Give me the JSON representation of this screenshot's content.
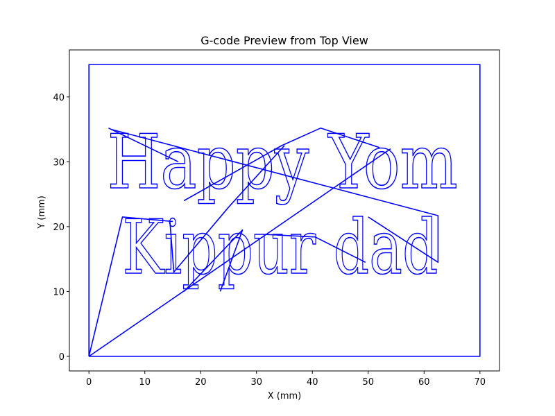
{
  "chart_data": {
    "type": "line",
    "title": "G-code Preview from Top View",
    "xlabel": "X (mm)",
    "ylabel": "Y (mm)",
    "xlim": [
      -3.5,
      73.5
    ],
    "ylim": [
      -2.25,
      47.25
    ],
    "xticks": [
      0,
      10,
      20,
      30,
      40,
      50,
      60,
      70
    ],
    "yticks": [
      0,
      10,
      20,
      30,
      40
    ],
    "grid": false,
    "line_color": "#0000ff",
    "series": [
      {
        "values": [
          {
            "x": 0,
            "y": 0
          },
          {
            "x": 0,
            "y": 45
          },
          {
            "x": 70,
            "y": 45
          },
          {
            "x": 70,
            "y": 0
          },
          {
            "x": 0,
            "y": 0
          }
        ]
      },
      {
        "values": [
          {
            "x": 0,
            "y": 0
          },
          {
            "x": 6,
            "y": 21.5
          },
          {
            "x": 15,
            "y": 20.8
          }
        ]
      },
      {
        "values": [
          {
            "x": 0,
            "y": 0
          },
          {
            "x": 54,
            "y": 32
          }
        ]
      },
      {
        "values": [
          {
            "x": 3.5,
            "y": 35.2
          },
          {
            "x": 16,
            "y": 30
          }
        ]
      },
      {
        "values": [
          {
            "x": 4,
            "y": 35
          },
          {
            "x": 62.5,
            "y": 21.7
          },
          {
            "x": 62.5,
            "y": 14.5
          },
          {
            "x": 50,
            "y": 21.5
          }
        ]
      },
      {
        "values": [
          {
            "x": 17,
            "y": 24
          },
          {
            "x": 34.5,
            "y": 32.5
          },
          {
            "x": 41.5,
            "y": 35.2
          },
          {
            "x": 52,
            "y": 32.2
          }
        ]
      },
      {
        "values": [
          {
            "x": 14.5,
            "y": 20.8
          },
          {
            "x": 15.2,
            "y": 13
          },
          {
            "x": 25,
            "y": 23
          }
        ]
      },
      {
        "values": [
          {
            "x": 17,
            "y": 10
          },
          {
            "x": 27.5,
            "y": 19.5
          },
          {
            "x": 23.5,
            "y": 10
          }
        ]
      },
      {
        "values": [
          {
            "x": 25,
            "y": 23
          },
          {
            "x": 35,
            "y": 32.5
          }
        ]
      },
      {
        "values": [
          {
            "x": 31.5,
            "y": 18.8
          },
          {
            "x": 40.5,
            "y": 18.4
          },
          {
            "x": 49.5,
            "y": 14.5
          }
        ]
      }
    ],
    "annotations": [
      {
        "text": "Happy Yom",
        "x": 3.3,
        "y": 26
      },
      {
        "text": "Kippur dad",
        "x": 6,
        "y": 12.8
      }
    ]
  }
}
